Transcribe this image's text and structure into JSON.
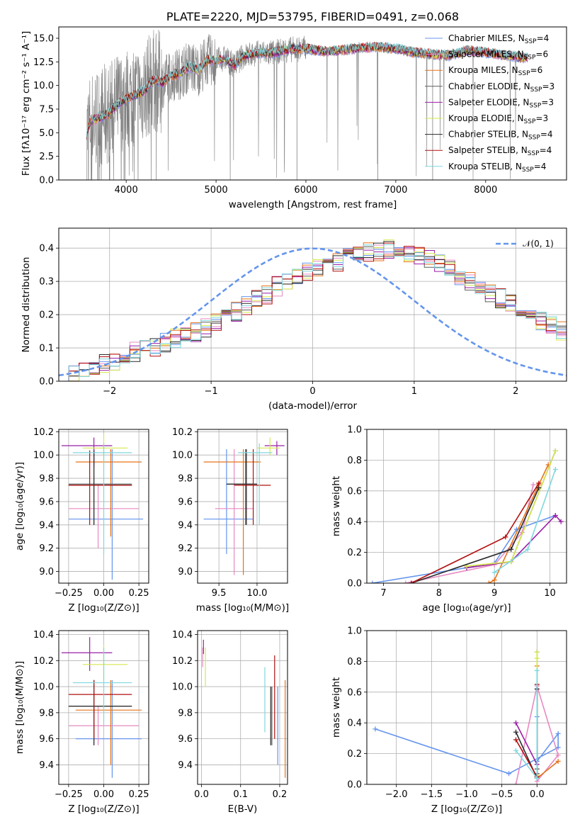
{
  "colors": [
    "#6495ED",
    "#E78AC3",
    "#E6731A",
    "#5F5F5F",
    "#9B1FA8",
    "#D6E84E",
    "#2A2A2A",
    "#B21010",
    "#7FD8DF"
  ],
  "chart_data": [
    {
      "id": "spectrum",
      "type": "line",
      "title": "PLATE=2220, MJD=53795, FIBERID=0491, z=0.068",
      "xlabel": "wavelength [Angstrom, rest frame]",
      "ylabel": "Flux [fλ10⁻¹⁷ erg cm⁻² s⁻¹ A⁻¹]",
      "xlim": [
        3250,
        8900
      ],
      "ylim": [
        0,
        16.2
      ],
      "xticks": [
        "4000",
        "5000",
        "6000",
        "7000",
        "8000"
      ],
      "yticks": [
        "0.0",
        "2.5",
        "5.0",
        "7.5",
        "10.0",
        "12.5",
        "15.0"
      ],
      "data_color": "#808080",
      "data_x_range": [
        3560,
        8470
      ],
      "data_profile": [
        [
          3560,
          4.8
        ],
        [
          3600,
          6.2
        ],
        [
          3700,
          6.6
        ],
        [
          3800,
          7.0
        ],
        [
          3900,
          8.0
        ],
        [
          4000,
          8.6
        ],
        [
          4100,
          9.0
        ],
        [
          4200,
          9.4
        ],
        [
          4300,
          10.6
        ],
        [
          4400,
          10.3
        ],
        [
          4500,
          11.0
        ],
        [
          4600,
          11.3
        ],
        [
          4700,
          12.0
        ],
        [
          4800,
          11.6
        ],
        [
          4900,
          12.7
        ],
        [
          5000,
          12.6
        ],
        [
          5100,
          12.9
        ],
        [
          5200,
          12.1
        ],
        [
          5300,
          13.1
        ],
        [
          5400,
          13.3
        ],
        [
          5500,
          13.5
        ],
        [
          5600,
          13.4
        ],
        [
          5800,
          13.8
        ],
        [
          6000,
          13.9
        ],
        [
          6200,
          13.6
        ],
        [
          6400,
          13.7
        ],
        [
          6600,
          14.0
        ],
        [
          6800,
          14.1
        ],
        [
          7000,
          13.9
        ],
        [
          7200,
          13.5
        ],
        [
          7400,
          13.3
        ],
        [
          7600,
          13.2
        ],
        [
          7800,
          13.7
        ],
        [
          8000,
          13.5
        ],
        [
          8200,
          13.2
        ],
        [
          8470,
          12.9
        ]
      ],
      "legend": [
        {
          "name": "Chabrier MILES, N",
          "sub": "SSP",
          "suffix": "=4"
        },
        {
          "name": "Salpeter MILES, N",
          "sub": "SSP",
          "suffix": "=6"
        },
        {
          "name": "Kroupa MILES, N",
          "sub": "SSP",
          "suffix": "=6"
        },
        {
          "name": "Chabrier ELODIE, N",
          "sub": "SSP",
          "suffix": "=3"
        },
        {
          "name": "Salpeter ELODIE, N",
          "sub": "SSP",
          "suffix": "=3"
        },
        {
          "name": "Kroupa ELODIE, N",
          "sub": "SSP",
          "suffix": "=3"
        },
        {
          "name": "Chabrier STELIB, N",
          "sub": "SSP",
          "suffix": "=4"
        },
        {
          "name": "Salpeter STELIB, N",
          "sub": "SSP",
          "suffix": "=4"
        },
        {
          "name": "Kroupa STELIB, N",
          "sub": "SSP",
          "suffix": "=4"
        }
      ],
      "legend_position": "right"
    },
    {
      "id": "residuals",
      "type": "bar",
      "xlabel": "(data-model)/error",
      "ylabel": "Normed distribution",
      "xlim": [
        -2.5,
        2.5
      ],
      "ylim": [
        0,
        0.46
      ],
      "xticks": [
        "−2",
        "−1",
        "0",
        "1",
        "2"
      ],
      "yticks": [
        "0.0",
        "0.1",
        "0.2",
        "0.3",
        "0.4"
      ],
      "bin_width": 0.1,
      "bins_start": -2.5,
      "base_hist": [
        0.012,
        0.02,
        0.028,
        0.038,
        0.05,
        0.058,
        0.068,
        0.088,
        0.098,
        0.104,
        0.115,
        0.13,
        0.138,
        0.148,
        0.162,
        0.178,
        0.19,
        0.208,
        0.225,
        0.245,
        0.262,
        0.285,
        0.298,
        0.312,
        0.33,
        0.34,
        0.348,
        0.36,
        0.37,
        0.38,
        0.39,
        0.392,
        0.395,
        0.392,
        0.385,
        0.375,
        0.365,
        0.35,
        0.335,
        0.318,
        0.3,
        0.282,
        0.265,
        0.248,
        0.23,
        0.212,
        0.195,
        0.178,
        0.165,
        0.15,
        0.138,
        0.128,
        0.118,
        0.104,
        0.094,
        0.085,
        0.076,
        0.066,
        0.058,
        0.05,
        0.044,
        0.038,
        0.032,
        0.027,
        0.022
      ],
      "curve": {
        "name": "𝒩(0, 1)",
        "color": "#6495ED",
        "scale": 0.39,
        "sigma": 1.0
      },
      "legend_position": "upper right"
    },
    {
      "id": "age-z",
      "type": "scatter",
      "xlabel": "Z [log₁₀(Z/Z⊙)]",
      "ylabel": "age  [log₁₀(age/yr)]",
      "xlim": [
        -0.32,
        0.32
      ],
      "ylim": [
        8.9,
        10.22
      ],
      "xticks": [
        "−0.25",
        "0.00",
        "0.25"
      ],
      "yticks": [
        "9.0",
        "9.2",
        "9.4",
        "9.6",
        "9.8",
        "10.0",
        "10.2"
      ],
      "points": [
        {
          "x": 0.06,
          "y": 9.45,
          "xlo": -0.25,
          "xhi": 0.28,
          "ylo": 8.93,
          "yhi": 10.05
        },
        {
          "x": -0.04,
          "y": 9.54,
          "xlo": -0.25,
          "xhi": 0.25,
          "ylo": 9.2,
          "yhi": 9.75
        },
        {
          "x": 0.05,
          "y": 9.94,
          "xlo": -0.2,
          "xhi": 0.27,
          "ylo": 9.3,
          "yhi": 10.05
        },
        {
          "x": -0.07,
          "y": 9.75,
          "xlo": -0.25,
          "xhi": 0.2,
          "ylo": 9.4,
          "yhi": 10.05
        },
        {
          "x": -0.07,
          "y": 10.08,
          "xlo": -0.3,
          "xhi": 0.06,
          "ylo": 9.9,
          "yhi": 10.15
        },
        {
          "x": 0.0,
          "y": 10.06,
          "xlo": -0.15,
          "xhi": 0.17,
          "ylo": 9.9,
          "yhi": 10.18
        },
        {
          "x": -0.07,
          "y": 9.74,
          "xlo": -0.25,
          "xhi": 0.2,
          "ylo": 9.4,
          "yhi": 10.04
        },
        {
          "x": -0.1,
          "y": 9.74,
          "xlo": -0.25,
          "xhi": 0.2,
          "ylo": 9.4,
          "yhi": 10.04
        },
        {
          "x": 0.0,
          "y": 10.02,
          "xlo": -0.22,
          "xhi": 0.2,
          "ylo": 9.15,
          "yhi": 10.1
        }
      ]
    },
    {
      "id": "age-mass",
      "type": "scatter",
      "xlabel": "mass [log₁₀(M/M⊙)]",
      "xlim": [
        9.22,
        10.4
      ],
      "ylim": [
        8.9,
        10.22
      ],
      "xticks": [
        "9.5",
        "10.0"
      ],
      "yticks": [
        "9.0",
        "9.2",
        "9.4",
        "9.6",
        "9.8",
        "10.0",
        "10.2"
      ],
      "points": [
        {
          "x": 9.6,
          "y": 9.45,
          "xlo": 9.3,
          "xhi": 9.95,
          "ylo": 9.15,
          "yhi": 10.05
        },
        {
          "x": 9.7,
          "y": 9.54,
          "xlo": 9.45,
          "xhi": 9.95,
          "ylo": 8.97,
          "yhi": 10.05
        },
        {
          "x": 9.82,
          "y": 9.94,
          "xlo": 9.3,
          "xhi": 10.05,
          "ylo": 8.97,
          "yhi": 10.05
        },
        {
          "x": 9.85,
          "y": 9.75,
          "xlo": 9.6,
          "xhi": 10.0,
          "ylo": 9.4,
          "yhi": 10.05
        },
        {
          "x": 10.26,
          "y": 10.08,
          "xlo": 10.1,
          "xhi": 10.36,
          "ylo": 10.0,
          "yhi": 10.12
        },
        {
          "x": 10.17,
          "y": 10.06,
          "xlo": 10.0,
          "xhi": 10.3,
          "ylo": 10.0,
          "yhi": 10.15
        },
        {
          "x": 9.86,
          "y": 9.75,
          "xlo": 9.6,
          "xhi": 10.0,
          "ylo": 9.4,
          "yhi": 10.05
        },
        {
          "x": 9.95,
          "y": 9.74,
          "xlo": 9.7,
          "xhi": 10.18,
          "ylo": 9.4,
          "yhi": 10.05
        },
        {
          "x": 10.03,
          "y": 10.02,
          "xlo": 9.75,
          "xhi": 10.2,
          "ylo": 9.4,
          "yhi": 10.1
        }
      ]
    },
    {
      "id": "mw-age",
      "type": "line",
      "xlabel": "age  [log₁₀(age/yr)]",
      "ylabel": "mass weight",
      "xlim": [
        6.7,
        10.3
      ],
      "ylim": [
        0,
        1.0
      ],
      "xticks": [
        "7",
        "8",
        "9",
        "10"
      ],
      "yticks": [
        "0.0",
        "0.2",
        "0.4",
        "0.6",
        "0.8",
        "1.0"
      ],
      "series": [
        {
          "x": [
            6.8,
            9.0,
            9.4,
            10.1
          ],
          "y": [
            0.0,
            0.13,
            0.35,
            0.44
          ]
        },
        {
          "x": [
            7.4,
            9.0,
            9.5,
            9.7
          ],
          "y": [
            0.0,
            0.12,
            0.33,
            0.64
          ]
        },
        {
          "x": [
            8.9,
            9.0,
            9.8,
            9.97
          ],
          "y": [
            0.0,
            0.02,
            0.64,
            0.77
          ]
        },
        {
          "x": [
            8.5,
            9.3,
            10.1
          ],
          "y": [
            0.1,
            0.14,
            0.86
          ]
        },
        {
          "x": [
            8.5,
            9.3,
            10.1,
            10.2
          ],
          "y": [
            0.1,
            0.14,
            0.44,
            0.4
          ]
        },
        {
          "x": [
            8.5,
            9.3,
            10.1
          ],
          "y": [
            0.11,
            0.14,
            0.86
          ]
        },
        {
          "x": [
            7.5,
            9.3,
            9.8
          ],
          "y": [
            0.0,
            0.22,
            0.62
          ]
        },
        {
          "x": [
            7.5,
            9.2,
            9.8
          ],
          "y": [
            0.0,
            0.3,
            0.65
          ]
        },
        {
          "x": [
            9.0,
            9.6,
            10.1
          ],
          "y": [
            0.07,
            0.22,
            0.74
          ]
        }
      ]
    },
    {
      "id": "mass-z",
      "type": "scatter",
      "xlabel": "Z [log₁₀(Z/Z⊙)]",
      "ylabel": "mass [log₁₀(M/M⊙)]",
      "xlim": [
        -0.32,
        0.32
      ],
      "ylim": [
        9.25,
        10.43
      ],
      "xticks": [
        "−0.25",
        "0.00",
        "0.25"
      ],
      "yticks": [
        "9.4",
        "9.6",
        "9.8",
        "10.0",
        "10.2",
        "10.4"
      ],
      "points": [
        {
          "x": 0.06,
          "y": 9.6,
          "xlo": -0.2,
          "xhi": 0.27,
          "ylo": 9.3,
          "yhi": 10.05
        },
        {
          "x": -0.04,
          "y": 9.7,
          "xlo": -0.25,
          "xhi": 0.25,
          "ylo": 9.55,
          "yhi": 9.85
        },
        {
          "x": 0.05,
          "y": 9.82,
          "xlo": -0.2,
          "xhi": 0.27,
          "ylo": 9.4,
          "yhi": 10.05
        },
        {
          "x": -0.07,
          "y": 9.85,
          "xlo": -0.25,
          "xhi": 0.2,
          "ylo": 9.55,
          "yhi": 10.05
        },
        {
          "x": -0.1,
          "y": 10.26,
          "xlo": -0.3,
          "xhi": 0.06,
          "ylo": 10.12,
          "yhi": 10.38
        },
        {
          "x": 0.0,
          "y": 10.17,
          "xlo": -0.15,
          "xhi": 0.17,
          "ylo": 10.05,
          "yhi": 10.32
        },
        {
          "x": -0.07,
          "y": 9.85,
          "xlo": -0.25,
          "xhi": 0.2,
          "ylo": 9.55,
          "yhi": 10.05
        },
        {
          "x": -0.07,
          "y": 9.94,
          "xlo": -0.25,
          "xhi": 0.2,
          "ylo": 9.6,
          "yhi": 10.05
        },
        {
          "x": 0.0,
          "y": 10.03,
          "xlo": -0.22,
          "xhi": 0.2,
          "ylo": 9.7,
          "yhi": 10.3
        }
      ]
    },
    {
      "id": "mass-ebv",
      "type": "scatter",
      "xlabel": "E(B-V)",
      "xlim": [
        -0.01,
        0.22
      ],
      "ylim": [
        9.25,
        10.43
      ],
      "xticks": [
        "0.0",
        "0.1",
        "0.2"
      ],
      "yticks": [
        "9.4",
        "9.6",
        "9.8",
        "10.0",
        "10.2",
        "10.4"
      ],
      "points": [
        {
          "x": 0.195,
          "y": 9.7,
          "ylo": 9.4,
          "yhi": 10.0
        },
        {
          "x": 0.003,
          "y": 10.22,
          "ylo": 10.15,
          "yhi": 10.3
        },
        {
          "x": 0.214,
          "y": 9.7,
          "ylo": 9.3,
          "yhi": 10.05
        },
        {
          "x": 0.18,
          "y": 9.78,
          "ylo": 9.55,
          "yhi": 10.0
        },
        {
          "x": 0.005,
          "y": 10.3,
          "ylo": 10.25,
          "yhi": 10.36
        },
        {
          "x": 0.01,
          "y": 10.15,
          "ylo": 10.0,
          "yhi": 10.3
        },
        {
          "x": 0.177,
          "y": 9.78,
          "ylo": 9.55,
          "yhi": 10.0
        },
        {
          "x": 0.187,
          "y": 9.92,
          "ylo": 9.6,
          "yhi": 10.24
        },
        {
          "x": 0.162,
          "y": 9.9,
          "ylo": 9.65,
          "yhi": 10.15
        }
      ]
    },
    {
      "id": "mw-z",
      "type": "line",
      "xlabel": "Z [log₁₀(Z/Z⊙)]",
      "ylabel": "mass weight",
      "xlim": [
        -2.42,
        0.42
      ],
      "ylim": [
        0,
        1.0
      ],
      "xticks": [
        "−2.0",
        "−1.5",
        "−1.0",
        "−0.5",
        "0.0"
      ],
      "yticks": [
        "0.0",
        "0.2",
        "0.4",
        "0.6",
        "0.8",
        "1.0"
      ],
      "series": [
        {
          "x": [
            -2.3,
            -0.4,
            0.3,
            0.3,
            0.0,
            0.0
          ],
          "y": [
            0.36,
            0.07,
            0.24,
            0.33,
            0.15,
            0.44
          ]
        },
        {
          "x": [
            -0.3,
            0.0,
            0.3,
            0.0
          ],
          "y": [
            0.0,
            0.64,
            0.19,
            0.02
          ]
        },
        {
          "x": [
            0.3,
            0.0,
            0.0,
            0.0
          ],
          "y": [
            0.15,
            0.04,
            0.77,
            0.05
          ]
        },
        {
          "x": [
            0.0,
            0.0,
            0.0
          ],
          "y": [
            0.07,
            0.86,
            0.1
          ]
        },
        {
          "x": [
            -0.3,
            0.0,
            0.0
          ],
          "y": [
            0.4,
            0.13,
            0.05
          ]
        },
        {
          "x": [
            0.0,
            0.0,
            0.0
          ],
          "y": [
            0.86,
            0.82,
            0.06
          ]
        },
        {
          "x": [
            -0.3,
            0.0,
            0.0
          ],
          "y": [
            0.34,
            0.04,
            0.62
          ]
        },
        {
          "x": [
            -0.3,
            0.0,
            0.0
          ],
          "y": [
            0.29,
            0.05,
            0.65
          ]
        },
        {
          "x": [
            -0.3,
            0.0,
            0.0
          ],
          "y": [
            0.22,
            0.04,
            0.74
          ]
        }
      ]
    }
  ]
}
